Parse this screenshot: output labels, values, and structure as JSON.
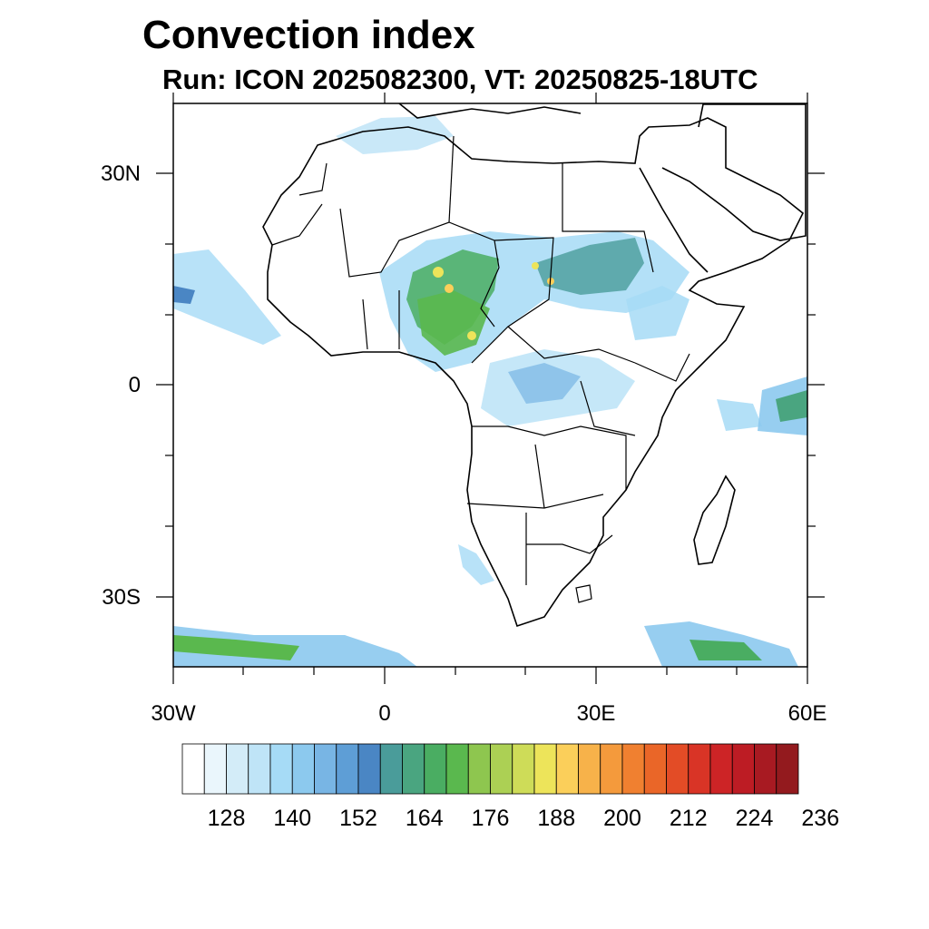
{
  "title": "Convection index",
  "subtitle": "Run: ICON 2025082300,  VT: 20250825-18UTC",
  "map": {
    "region": "Africa",
    "lon_range": [
      -30,
      60
    ],
    "lat_range": [
      -40,
      40
    ],
    "lat_labels": [
      "30N",
      "0",
      "30S"
    ],
    "lon_labels": [
      "30W",
      "0",
      "30E",
      "60E"
    ]
  },
  "colorbar": {
    "colors": [
      "#ffffff",
      "#eaf6fc",
      "#d3ecf8",
      "#bfe4f7",
      "#a6dbf6",
      "#8cc9ee",
      "#78b5e4",
      "#5e9ed6",
      "#4a86c4",
      "#4a9c9a",
      "#4aa580",
      "#4aad62",
      "#5ab84e",
      "#8ec64f",
      "#acd054",
      "#cedc58",
      "#ede45a",
      "#fbcf5a",
      "#f7b24a",
      "#f49a3c",
      "#f08030",
      "#ea6628",
      "#e34c26",
      "#d93426",
      "#cd2426",
      "#bd1c24",
      "#a81a22",
      "#931a1e"
    ],
    "tick_labels": [
      "128",
      "140",
      "152",
      "164",
      "176",
      "188",
      "200",
      "212",
      "224",
      "236"
    ]
  }
}
